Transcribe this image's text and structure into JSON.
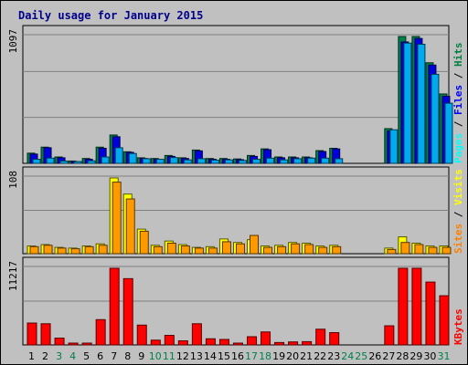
{
  "chart_data": {
    "type": "bar",
    "title": "Daily usage for January 2015",
    "days": [
      "1",
      "2",
      "3",
      "4",
      "5",
      "6",
      "7",
      "8",
      "9",
      "10",
      "11",
      "12",
      "13",
      "14",
      "15",
      "16",
      "17",
      "18",
      "19",
      "20",
      "21",
      "22",
      "23",
      "24",
      "25",
      "26",
      "27",
      "28",
      "29",
      "30",
      "31"
    ],
    "weekend_days": [
      "3",
      "4",
      "10",
      "11",
      "17",
      "18",
      "24",
      "25",
      "31"
    ],
    "panels": [
      {
        "id": "hits-files-pages",
        "max_label": "1097",
        "ymax": 1097,
        "legend": [
          {
            "text": "Pages",
            "color": "#00ffff"
          },
          {
            "text": " / ",
            "color": "#000000"
          },
          {
            "text": "Files",
            "color": "#0000ff"
          },
          {
            "text": " / ",
            "color": "#000000"
          },
          {
            "text": "Hits",
            "color": "#008040"
          }
        ],
        "series": [
          {
            "name": "Hits",
            "color": "#00804a",
            "values": [
              88,
              140,
              55,
              20,
              42,
              140,
              245,
              100,
              48,
              42,
              68,
              48,
              115,
              42,
              42,
              38,
              68,
              125,
              55,
              55,
              55,
              110,
              130,
              0,
              0,
              0,
              300,
              1097,
              1097,
              870,
              600
            ]
          },
          {
            "name": "Files",
            "color": "#0000dd",
            "values": [
              80,
              135,
              48,
              15,
              35,
              130,
              230,
              95,
              42,
              35,
              60,
              42,
              108,
              35,
              35,
              32,
              60,
              118,
              48,
              48,
              48,
              102,
              125,
              0,
              0,
              0,
              280,
              1050,
              1080,
              850,
              580
            ]
          },
          {
            "name": "Pages",
            "color": "#00aaee",
            "values": [
              35,
              45,
              20,
              10,
              22,
              55,
              135,
              85,
              40,
              35,
              50,
              30,
              40,
              28,
              30,
              25,
              35,
              45,
              30,
              40,
              45,
              45,
              40,
              0,
              0,
              0,
              290,
              1040,
              1030,
              770,
              520
            ]
          }
        ]
      },
      {
        "id": "visits-sites",
        "max_label": "108",
        "ymax": 108,
        "legend": [
          {
            "text": "Sites",
            "color": "#ff8000"
          },
          {
            "text": " / ",
            "color": "#000000"
          },
          {
            "text": "Visits",
            "color": "#ffff00"
          }
        ],
        "series": [
          {
            "name": "Visits",
            "color": "#ffff00",
            "values": [
              11,
              13,
              9,
              8,
              11,
              14,
              108,
              85,
              35,
              12,
              18,
              13,
              9,
              10,
              21,
              16,
              20,
              11,
              12,
              16,
              15,
              11,
              12,
              0,
              0,
              0,
              8,
              24,
              15,
              11,
              11
            ]
          },
          {
            "name": "Sites",
            "color": "#ff9900",
            "values": [
              10,
              12,
              8,
              7,
              10,
              12,
              102,
              78,
              32,
              10,
              15,
              11,
              8,
              8,
              17,
              14,
              26,
              9,
              10,
              14,
              13,
              9,
              10,
              0,
              0,
              0,
              6,
              16,
              13,
              9,
              9
            ]
          }
        ]
      },
      {
        "id": "kbytes",
        "max_label": "11217",
        "ymax": 11217,
        "legend": [
          {
            "text": "KBytes",
            "color": "#ff0000"
          }
        ],
        "series": [
          {
            "name": "KBytes",
            "color": "#ff0000",
            "values": [
              3200,
              3100,
              1000,
              120,
              220,
              3700,
              11217,
              9700,
              2900,
              700,
              1400,
              600,
              3100,
              900,
              800,
              120,
              1200,
              1900,
              350,
              440,
              480,
              2300,
              1800,
              0,
              0,
              0,
              2800,
              11217,
              11217,
              9200,
              7200
            ]
          }
        ]
      }
    ]
  }
}
